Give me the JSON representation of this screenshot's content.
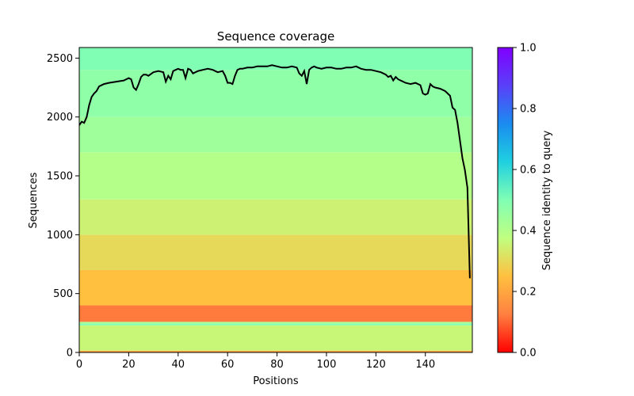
{
  "chart_data": {
    "type": "heatmap",
    "title": "Sequence coverage",
    "xlabel": "Positions",
    "ylabel": "Sequences",
    "xlim": [
      0,
      159
    ],
    "ylim": [
      0,
      2590
    ],
    "x_ticks": [
      0,
      20,
      40,
      60,
      80,
      100,
      120,
      140
    ],
    "y_ticks": [
      0,
      500,
      1000,
      1500,
      2000,
      2500
    ],
    "grid": false,
    "colorbar": {
      "label": "Sequence identity to query",
      "colormap": "rainbow_r",
      "range": [
        0,
        1
      ],
      "ticks": [
        "0.0",
        "0.2",
        "0.4",
        "0.6",
        "0.8",
        "1.0"
      ],
      "colors": [
        "#ff0000",
        "#ff8040",
        "#ffc040",
        "#c0ff80",
        "#80ffb4",
        "#20d0e0",
        "#1a8cf0",
        "#5a40f8",
        "#8000ff"
      ]
    },
    "identity_bands": [
      {
        "seq_from": 0,
        "seq_to": 15,
        "identity": 0.2
      },
      {
        "seq_from": 15,
        "seq_to": 230,
        "identity": 0.36
      },
      {
        "seq_from": 230,
        "seq_to": 245,
        "identity": 0.5
      },
      {
        "seq_from": 245,
        "seq_to": 260,
        "identity": 0.42
      },
      {
        "seq_from": 260,
        "seq_to": 400,
        "identity": 0.12
      },
      {
        "seq_from": 400,
        "seq_to": 700,
        "identity": 0.25
      },
      {
        "seq_from": 700,
        "seq_to": 1000,
        "identity": 0.3
      },
      {
        "seq_from": 1000,
        "seq_to": 1300,
        "identity": 0.35
      },
      {
        "seq_from": 1300,
        "seq_to": 1700,
        "identity": 0.4
      },
      {
        "seq_from": 1700,
        "seq_to": 2000,
        "identity": 0.44
      },
      {
        "seq_from": 2000,
        "seq_to": 2400,
        "identity": 0.47
      },
      {
        "seq_from": 2400,
        "seq_to": 2590,
        "identity": 0.5
      }
    ],
    "coverage_line": {
      "color": "#000000",
      "x": [
        0,
        1,
        2,
        3,
        4,
        5,
        6,
        7,
        8,
        10,
        12,
        15,
        18,
        20,
        21,
        22,
        23,
        24,
        25,
        26,
        27,
        28,
        30,
        32,
        34,
        35,
        36,
        37,
        38,
        39,
        40,
        41,
        42,
        43,
        44,
        45,
        46,
        48,
        50,
        52,
        54,
        56,
        58,
        59,
        60,
        61,
        62,
        63,
        64,
        65,
        66,
        68,
        70,
        72,
        74,
        76,
        78,
        80,
        82,
        84,
        86,
        88,
        89,
        90,
        91,
        92,
        93,
        94,
        95,
        96,
        98,
        100,
        102,
        104,
        106,
        108,
        110,
        112,
        114,
        116,
        118,
        120,
        122,
        124,
        125,
        126,
        127,
        128,
        129,
        130,
        131,
        132,
        134,
        136,
        138,
        139,
        140,
        141,
        142,
        143,
        144,
        146,
        148,
        150,
        151,
        152,
        153,
        154,
        155,
        156,
        157,
        158
      ],
      "y": [
        1930,
        1960,
        1950,
        2000,
        2100,
        2170,
        2200,
        2220,
        2260,
        2280,
        2290,
        2300,
        2310,
        2330,
        2320,
        2250,
        2230,
        2280,
        2340,
        2360,
        2360,
        2350,
        2380,
        2390,
        2380,
        2300,
        2350,
        2320,
        2390,
        2400,
        2410,
        2400,
        2400,
        2330,
        2410,
        2400,
        2370,
        2390,
        2400,
        2410,
        2400,
        2380,
        2390,
        2350,
        2290,
        2290,
        2280,
        2350,
        2400,
        2410,
        2410,
        2420,
        2420,
        2430,
        2430,
        2430,
        2440,
        2430,
        2420,
        2420,
        2430,
        2420,
        2370,
        2350,
        2390,
        2280,
        2400,
        2420,
        2430,
        2420,
        2410,
        2420,
        2420,
        2410,
        2410,
        2420,
        2420,
        2430,
        2410,
        2400,
        2400,
        2390,
        2380,
        2360,
        2340,
        2350,
        2310,
        2340,
        2320,
        2310,
        2300,
        2290,
        2280,
        2290,
        2270,
        2200,
        2190,
        2200,
        2280,
        2260,
        2250,
        2240,
        2220,
        2180,
        2080,
        2060,
        1950,
        1800,
        1650,
        1550,
        1400,
        630
      ]
    }
  }
}
